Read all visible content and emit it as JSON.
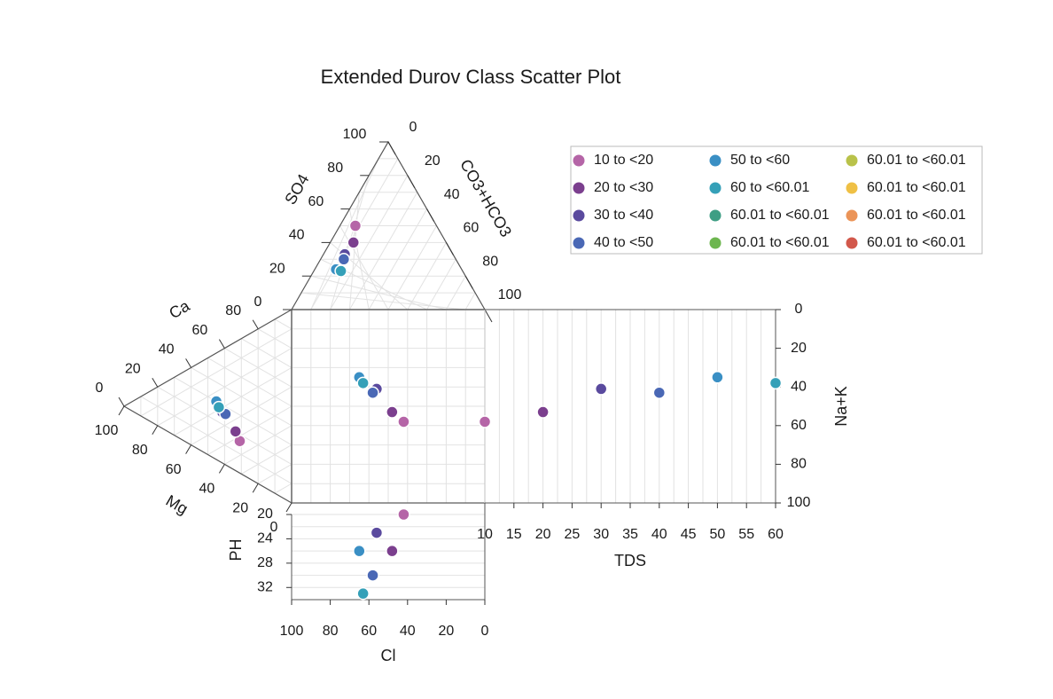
{
  "chart_data": {
    "type": "scatter",
    "title": "Extended Durov Class Scatter Plot",
    "anion_triangle": {
      "axes": [
        "SO4",
        "CO3+HCO3",
        "Cl"
      ],
      "so4_ticks": [
        "100",
        "80",
        "60",
        "40",
        "20",
        "0"
      ],
      "co3_ticks": [
        "0",
        "20",
        "40",
        "60",
        "80",
        "100"
      ],
      "bottom_ticks": [
        "100",
        "80",
        "60",
        "40",
        "20",
        "0"
      ]
    },
    "cation_triangle": {
      "axes": [
        "Ca",
        "Mg",
        "Na+K"
      ],
      "ca_ticks": [
        "80",
        "60",
        "40",
        "20",
        "0"
      ],
      "mg_ticks": [
        "100",
        "80",
        "60",
        "40",
        "20",
        "0"
      ],
      "right_ticks": [
        "0",
        "20",
        "40",
        "60",
        "80",
        "100"
      ]
    },
    "square": {
      "xlabel": "Cl",
      "ylabel": "Na+K",
      "x_ticks": [
        "100",
        "80",
        "60",
        "40",
        "20",
        "0"
      ],
      "y_ticks": [
        "0",
        "20",
        "40",
        "60",
        "80",
        "100"
      ]
    },
    "tds_plot": {
      "xlabel": "TDS",
      "xlim": [
        10,
        60
      ],
      "x_ticks": [
        "10",
        "15",
        "20",
        "25",
        "30",
        "35",
        "40",
        "45",
        "50",
        "55",
        "60"
      ]
    },
    "ph_plot": {
      "ylabel": "PH",
      "ylim": [
        20,
        34
      ],
      "y_ticks": [
        "20",
        "24",
        "28",
        "32"
      ]
    },
    "legend": [
      {
        "label": "10 to <20",
        "color": "#b565a7"
      },
      {
        "label": "20 to <30",
        "color": "#7b3f8e"
      },
      {
        "label": "30 to <40",
        "color": "#5a4a9e"
      },
      {
        "label": "40 to <50",
        "color": "#4a68b5"
      },
      {
        "label": "50 to <60",
        "color": "#3a8fc4"
      },
      {
        "label": "60 to <60.01",
        "color": "#35a0b8"
      },
      {
        "label": "60.01 to <60.01",
        "color": "#3e9e84"
      },
      {
        "label": "60.01 to <60.01",
        "color": "#6db64f"
      },
      {
        "label": "60.01 to <60.01",
        "color": "#b9c24a"
      },
      {
        "label": "60.01 to <60.01",
        "color": "#efc045"
      },
      {
        "label": "60.01 to <60.01",
        "color": "#eb9458"
      },
      {
        "label": "60.01 to <60.01",
        "color": "#d2584b"
      }
    ],
    "samples": [
      {
        "group": 0,
        "ca": 22,
        "mg": 20,
        "na_k": 58,
        "so4": 50,
        "co3_hco3": 8,
        "cl": 42,
        "tds": 10,
        "ph": 20
      },
      {
        "group": 1,
        "ca": 27,
        "mg": 20,
        "na_k": 53,
        "so4": 40,
        "co3_hco3": 12,
        "cl": 48,
        "tds": 20,
        "ph": 26
      },
      {
        "group": 2,
        "ca": 35,
        "mg": 24,
        "na_k": 41,
        "so4": 33,
        "co3_hco3": 11,
        "cl": 56,
        "tds": 30,
        "ph": 23
      },
      {
        "group": 3,
        "ca": 35,
        "mg": 22,
        "na_k": 43,
        "so4": 30,
        "co3_hco3": 12,
        "cl": 58,
        "tds": 40,
        "ph": 30
      },
      {
        "group": 4,
        "ca": 40,
        "mg": 25,
        "na_k": 35,
        "so4": 24,
        "co3_hco3": 11,
        "cl": 65,
        "tds": 50,
        "ph": 26
      },
      {
        "group": 5,
        "ca": 37,
        "mg": 25,
        "na_k": 38,
        "so4": 23,
        "co3_hco3": 14,
        "cl": 63,
        "tds": 60,
        "ph": 33
      }
    ]
  }
}
